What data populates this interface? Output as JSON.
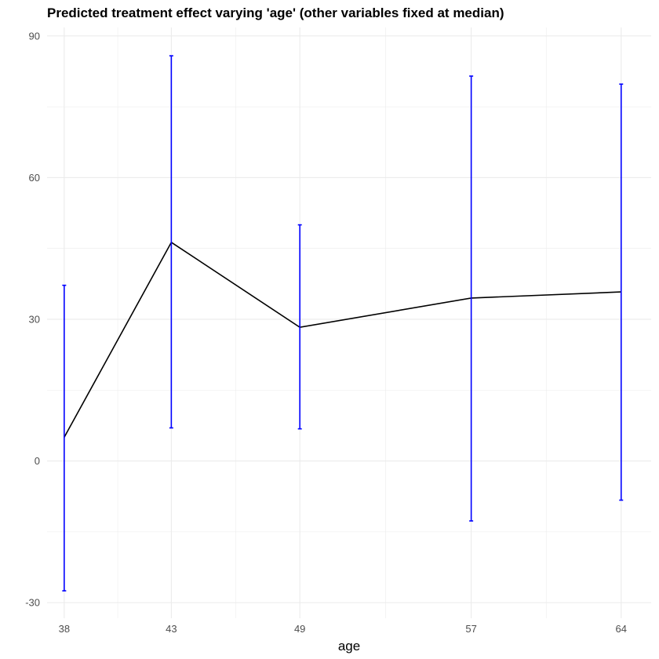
{
  "chart_data": {
    "type": "line",
    "title": "Predicted treatment effect varying 'age' (other variables fixed at median)",
    "xlabel": "age",
    "ylabel": "",
    "x_ticks": [
      38,
      43,
      49,
      57,
      64
    ],
    "y_ticks": [
      -30,
      0,
      30,
      60,
      90
    ],
    "xlim": [
      37.2,
      65.4
    ],
    "ylim": [
      -33.3,
      91.8
    ],
    "grid": true,
    "legend": "none",
    "series": [
      {
        "x": [
          38,
          43,
          49,
          57,
          64
        ],
        "y": [
          5.0,
          46.3,
          28.3,
          34.5,
          35.8
        ],
        "lower": [
          -27.5,
          7.0,
          6.8,
          -12.7,
          -8.3
        ],
        "upper": [
          37.2,
          85.8,
          50.0,
          81.5,
          79.8
        ]
      }
    ],
    "colors": {
      "line": "#000000",
      "errorbar": "#0000ff",
      "grid": "#ebebeb"
    }
  }
}
